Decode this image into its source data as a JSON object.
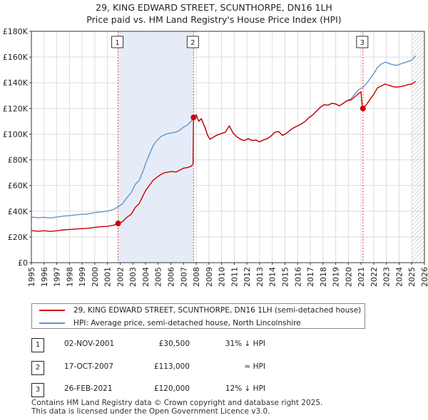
{
  "header": {
    "title_line1": "29, KING EDWARD STREET, SCUNTHORPE, DN16 1LH",
    "title_line2": "Price paid vs. HM Land Registry's House Price Index (HPI)"
  },
  "chart_data": {
    "type": "line",
    "x_range": [
      1995,
      2026
    ],
    "y_range": [
      0,
      180000
    ],
    "y_ticks": [
      {
        "value": 0,
        "label": "£0"
      },
      {
        "value": 20000,
        "label": "£20K"
      },
      {
        "value": 40000,
        "label": "£40K"
      },
      {
        "value": 60000,
        "label": "£60K"
      },
      {
        "value": 80000,
        "label": "£80K"
      },
      {
        "value": 100000,
        "label": "£100K"
      },
      {
        "value": 120000,
        "label": "£120K"
      },
      {
        "value": 140000,
        "label": "£140K"
      },
      {
        "value": 160000,
        "label": "£160K"
      },
      {
        "value": 180000,
        "label": "£180K"
      }
    ],
    "x_ticks": [
      "1995",
      "1996",
      "1997",
      "1998",
      "1999",
      "2000",
      "2001",
      "2002",
      "2003",
      "2004",
      "2005",
      "2006",
      "2007",
      "2008",
      "2009",
      "2010",
      "2011",
      "2012",
      "2013",
      "2014",
      "2015",
      "2016",
      "2017",
      "2018",
      "2019",
      "2020",
      "2021",
      "2022",
      "2023",
      "2024",
      "2025",
      "2026"
    ],
    "series": [
      {
        "name": "29, KING EDWARD STREET, SCUNTHORPE, DN16 1LH (semi-detached house)",
        "color": "#cc0000",
        "points": [
          [
            1995.0,
            25000
          ],
          [
            1995.5,
            24500
          ],
          [
            1996.0,
            24800
          ],
          [
            1996.5,
            24300
          ],
          [
            1997.0,
            24800
          ],
          [
            1997.5,
            25500
          ],
          [
            1998.0,
            25800
          ],
          [
            1998.5,
            26200
          ],
          [
            1999.0,
            26500
          ],
          [
            1999.5,
            26800
          ],
          [
            2000.0,
            27500
          ],
          [
            2000.5,
            28000
          ],
          [
            2001.0,
            28300
          ],
          [
            2001.5,
            29200
          ],
          [
            2001.84,
            30500
          ],
          [
            2002.2,
            32000
          ],
          [
            2002.5,
            35000
          ],
          [
            2002.9,
            38000
          ],
          [
            2003.2,
            43000
          ],
          [
            2003.5,
            46000
          ],
          [
            2003.8,
            52000
          ],
          [
            2004.0,
            56000
          ],
          [
            2004.3,
            60000
          ],
          [
            2004.6,
            64000
          ],
          [
            2004.9,
            66500
          ],
          [
            2005.2,
            68500
          ],
          [
            2005.5,
            70000
          ],
          [
            2005.8,
            70500
          ],
          [
            2006.1,
            71000
          ],
          [
            2006.4,
            70500
          ],
          [
            2006.7,
            72000
          ],
          [
            2007.0,
            73500
          ],
          [
            2007.3,
            74000
          ],
          [
            2007.6,
            75000
          ],
          [
            2007.75,
            77000
          ],
          [
            2007.79,
            113000
          ],
          [
            2008.0,
            115000
          ],
          [
            2008.2,
            110000
          ],
          [
            2008.4,
            112000
          ],
          [
            2008.7,
            105000
          ],
          [
            2008.9,
            99000
          ],
          [
            2009.1,
            96000
          ],
          [
            2009.4,
            98000
          ],
          [
            2009.7,
            99500
          ],
          [
            2010.0,
            100500
          ],
          [
            2010.3,
            101500
          ],
          [
            2010.6,
            106500
          ],
          [
            2010.9,
            101000
          ],
          [
            2011.2,
            98000
          ],
          [
            2011.5,
            96000
          ],
          [
            2011.8,
            95000
          ],
          [
            2012.1,
            96500
          ],
          [
            2012.4,
            95000
          ],
          [
            2012.7,
            95500
          ],
          [
            2013.0,
            94000
          ],
          [
            2013.3,
            95500
          ],
          [
            2013.6,
            96500
          ],
          [
            2013.9,
            98500
          ],
          [
            2014.2,
            101500
          ],
          [
            2014.5,
            102000
          ],
          [
            2014.8,
            99000
          ],
          [
            2015.1,
            100500
          ],
          [
            2015.4,
            103000
          ],
          [
            2015.7,
            105000
          ],
          [
            2016.0,
            106500
          ],
          [
            2016.3,
            108000
          ],
          [
            2016.6,
            110000
          ],
          [
            2016.9,
            113000
          ],
          [
            2017.2,
            115000
          ],
          [
            2017.5,
            118000
          ],
          [
            2017.8,
            121000
          ],
          [
            2018.1,
            123000
          ],
          [
            2018.4,
            122500
          ],
          [
            2018.7,
            124000
          ],
          [
            2019.0,
            123500
          ],
          [
            2019.3,
            122000
          ],
          [
            2019.6,
            124000
          ],
          [
            2019.9,
            126000
          ],
          [
            2020.2,
            126500
          ],
          [
            2020.5,
            129000
          ],
          [
            2020.8,
            131500
          ],
          [
            2021.0,
            133000
          ],
          [
            2021.05,
            126000
          ],
          [
            2021.15,
            120000
          ],
          [
            2021.4,
            122500
          ],
          [
            2021.7,
            127000
          ],
          [
            2022.0,
            131000
          ],
          [
            2022.3,
            136000
          ],
          [
            2022.6,
            137500
          ],
          [
            2022.9,
            139000
          ],
          [
            2023.2,
            138000
          ],
          [
            2023.5,
            137000
          ],
          [
            2023.8,
            136500
          ],
          [
            2024.1,
            137000
          ],
          [
            2024.4,
            137500
          ],
          [
            2024.7,
            138500
          ],
          [
            2025.0,
            139000
          ],
          [
            2025.3,
            141000
          ]
        ]
      },
      {
        "name": "HPI: Average price, semi-detached house, North Lincolnshire",
        "color": "#6495cd",
        "points": [
          [
            1995.0,
            35500
          ],
          [
            1995.5,
            35000
          ],
          [
            1996.0,
            35300
          ],
          [
            1996.5,
            34800
          ],
          [
            1997.0,
            35500
          ],
          [
            1997.5,
            36200
          ],
          [
            1998.0,
            36600
          ],
          [
            1998.5,
            37200
          ],
          [
            1999.0,
            37600
          ],
          [
            1999.5,
            38000
          ],
          [
            2000.0,
            39000
          ],
          [
            2000.5,
            39500
          ],
          [
            2001.0,
            40100
          ],
          [
            2001.5,
            41500
          ],
          [
            2001.84,
            43500
          ],
          [
            2002.2,
            46000
          ],
          [
            2002.5,
            50000
          ],
          [
            2002.9,
            55000
          ],
          [
            2003.2,
            61000
          ],
          [
            2003.5,
            64000
          ],
          [
            2003.8,
            71000
          ],
          [
            2004.0,
            77000
          ],
          [
            2004.3,
            84000
          ],
          [
            2004.6,
            91000
          ],
          [
            2004.9,
            95000
          ],
          [
            2005.2,
            98000
          ],
          [
            2005.5,
            99500
          ],
          [
            2005.8,
            100500
          ],
          [
            2006.1,
            101000
          ],
          [
            2006.4,
            101500
          ],
          [
            2006.7,
            103000
          ],
          [
            2007.0,
            105500
          ],
          [
            2007.3,
            107000
          ],
          [
            2007.6,
            110000
          ],
          [
            2007.79,
            113000
          ],
          [
            2008.0,
            115000
          ],
          [
            2008.2,
            110000
          ],
          [
            2008.4,
            112000
          ],
          [
            2008.7,
            105000
          ],
          [
            2008.9,
            99000
          ],
          [
            2009.1,
            96000
          ],
          [
            2009.4,
            98000
          ],
          [
            2009.7,
            99500
          ],
          [
            2010.0,
            100500
          ],
          [
            2010.3,
            101500
          ],
          [
            2010.6,
            106500
          ],
          [
            2010.9,
            101000
          ],
          [
            2011.2,
            98000
          ],
          [
            2011.5,
            96000
          ],
          [
            2011.8,
            95000
          ],
          [
            2012.1,
            96500
          ],
          [
            2012.4,
            95000
          ],
          [
            2012.7,
            95500
          ],
          [
            2013.0,
            94000
          ],
          [
            2013.3,
            95500
          ],
          [
            2013.6,
            96500
          ],
          [
            2013.9,
            98500
          ],
          [
            2014.2,
            101500
          ],
          [
            2014.5,
            102000
          ],
          [
            2014.8,
            99000
          ],
          [
            2015.1,
            100500
          ],
          [
            2015.4,
            103000
          ],
          [
            2015.7,
            105000
          ],
          [
            2016.0,
            106500
          ],
          [
            2016.3,
            108000
          ],
          [
            2016.6,
            110000
          ],
          [
            2016.9,
            113000
          ],
          [
            2017.2,
            115000
          ],
          [
            2017.5,
            118000
          ],
          [
            2017.8,
            121000
          ],
          [
            2018.1,
            123000
          ],
          [
            2018.4,
            122500
          ],
          [
            2018.7,
            124000
          ],
          [
            2019.0,
            123500
          ],
          [
            2019.3,
            122000
          ],
          [
            2019.6,
            124000
          ],
          [
            2019.9,
            126000
          ],
          [
            2020.2,
            127500
          ],
          [
            2020.5,
            131000
          ],
          [
            2020.8,
            134500
          ],
          [
            2021.15,
            136400
          ],
          [
            2021.4,
            139000
          ],
          [
            2021.7,
            143000
          ],
          [
            2022.0,
            147000
          ],
          [
            2022.3,
            152000
          ],
          [
            2022.6,
            154500
          ],
          [
            2022.9,
            156000
          ],
          [
            2023.2,
            155000
          ],
          [
            2023.5,
            154000
          ],
          [
            2023.8,
            153500
          ],
          [
            2024.1,
            154500
          ],
          [
            2024.4,
            155500
          ],
          [
            2024.7,
            156500
          ],
          [
            2025.0,
            157500
          ],
          [
            2025.3,
            161000
          ]
        ]
      }
    ],
    "sales": [
      {
        "label": "1",
        "x": 2001.84,
        "price": 30500
      },
      {
        "label": "2",
        "x": 2007.79,
        "price": 113000
      },
      {
        "label": "3",
        "x": 2021.15,
        "price": 120000
      }
    ],
    "future_from": 2025.0
  },
  "legend": {
    "line1": "29, KING EDWARD STREET, SCUNTHORPE, DN16 1LH (semi-detached house)",
    "line2": "HPI: Average price, semi-detached house, North Lincolnshire",
    "color1": "#cc0000",
    "color2": "#6495cd"
  },
  "transactions": [
    {
      "num": "1",
      "date": "02-NOV-2001",
      "price": "£30,500",
      "hpi": "31% ↓ HPI"
    },
    {
      "num": "2",
      "date": "17-OCT-2007",
      "price": "£113,000",
      "hpi": "≈ HPI"
    },
    {
      "num": "3",
      "date": "26-FEB-2021",
      "price": "£120,000",
      "hpi": "12% ↓ HPI"
    }
  ],
  "footer": {
    "line1": "Contains HM Land Registry data © Crown copyright and database right 2025.",
    "line2": "This data is licensed under the Open Government Licence v3.0."
  }
}
